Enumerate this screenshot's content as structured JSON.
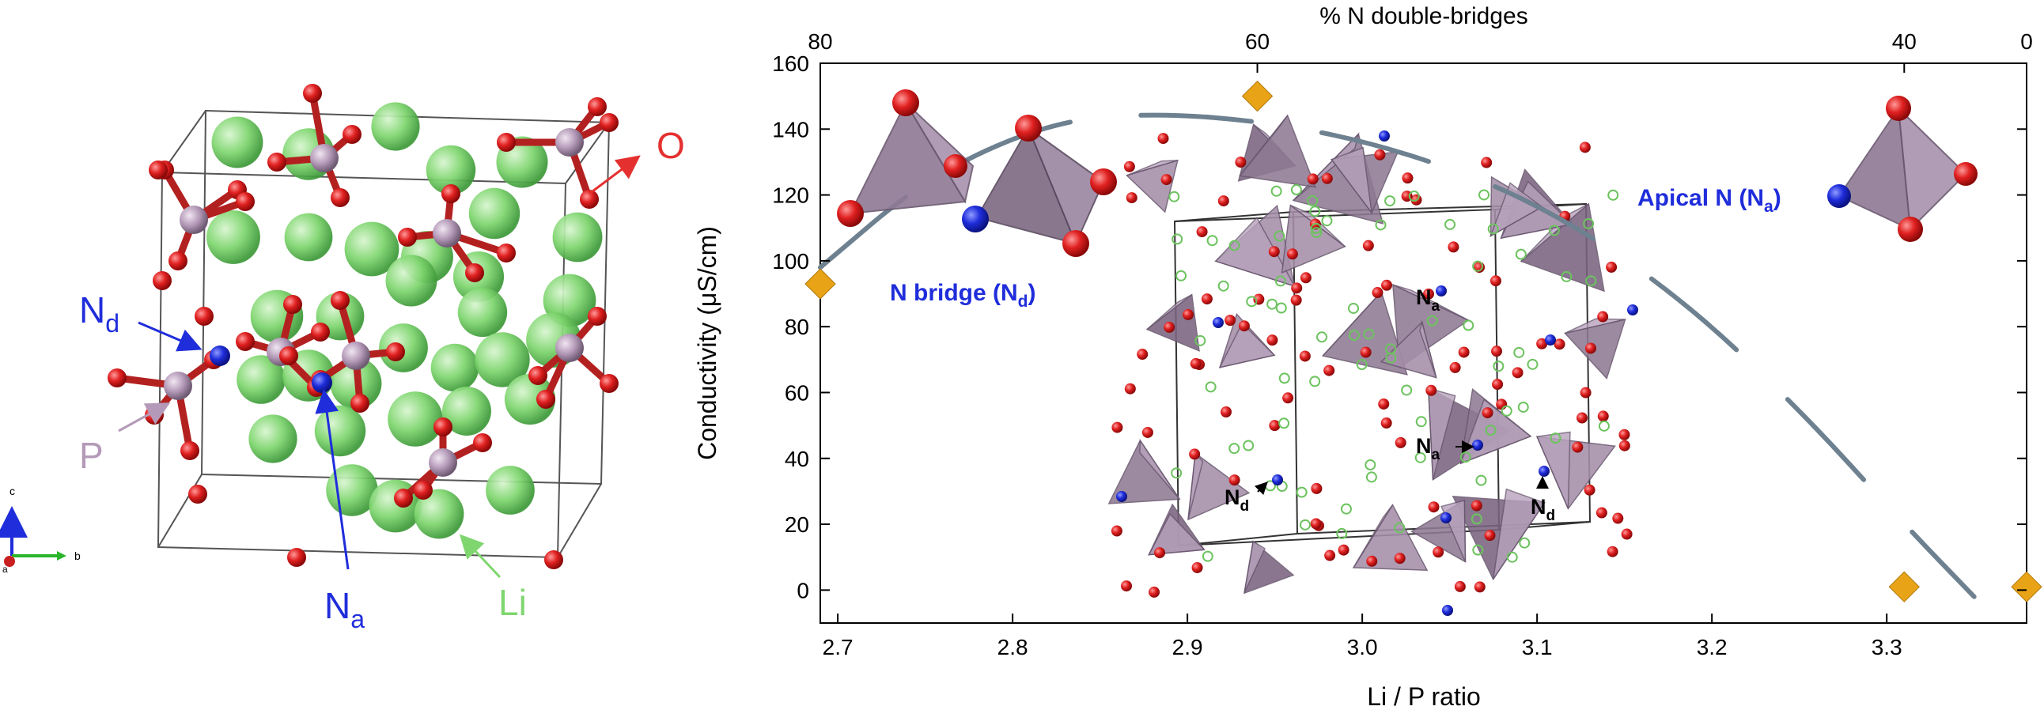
{
  "left_panel": {
    "labels": {
      "nd_main": "N",
      "nd_sub": "d",
      "na_main": "N",
      "na_sub": "a",
      "p": "P",
      "o": "O",
      "li": "Li"
    },
    "axes_triad": {
      "c": "c",
      "b": "b",
      "a": "a"
    },
    "colors": {
      "li": "#7fd66f",
      "o": "#d41e1e",
      "p": "#b49ab8",
      "n": "#1f2ddb",
      "cell": "#555555"
    }
  },
  "chart_data": {
    "type": "scatter",
    "xlabel": "Li / P ratio",
    "ylabel": "Conductivity (μS/cm)",
    "top_axis_label": "% N double-bridges",
    "xlim": [
      2.69,
      3.38
    ],
    "ylim": [
      -10,
      160
    ],
    "x_ticks": [
      2.7,
      2.8,
      2.9,
      3.0,
      3.1,
      3.2,
      3.3
    ],
    "x_tick_labels": [
      "2.7",
      "2.8",
      "2.9",
      "3.0",
      "3.1",
      "3.2",
      "3.3"
    ],
    "y_ticks": [
      0,
      20,
      40,
      60,
      80,
      100,
      120,
      140,
      160
    ],
    "y_tick_labels": [
      "0",
      "20",
      "40",
      "60",
      "80",
      "100",
      "120",
      "140",
      "160"
    ],
    "top_ticks": [
      {
        "li_p": 2.69,
        "label": "80"
      },
      {
        "li_p": 2.94,
        "label": "60"
      },
      {
        "li_p": 3.31,
        "label": "40"
      },
      {
        "li_p": 3.38,
        "label": "0"
      }
    ],
    "series": [
      {
        "marker": "diamond",
        "color": "#e8a317",
        "points": [
          {
            "x": 2.69,
            "y": 93
          },
          {
            "x": 2.94,
            "y": 150
          },
          {
            "x": 3.31,
            "y": 1
          },
          {
            "x": 3.38,
            "y": 1
          }
        ]
      }
    ],
    "trend_curve": {
      "style": "dashed",
      "color": "#6e8190",
      "points": [
        [
          2.69,
          98
        ],
        [
          2.75,
          125
        ],
        [
          2.82,
          142
        ],
        [
          2.88,
          145
        ],
        [
          2.95,
          142
        ],
        [
          3.02,
          134
        ],
        [
          3.1,
          118
        ],
        [
          3.18,
          90
        ],
        [
          3.25,
          55
        ],
        [
          3.31,
          20
        ],
        [
          3.35,
          -2
        ]
      ]
    },
    "annotations": {
      "nd_bridge": "N bridge (N",
      "nd_bridge_sub": "d",
      "nd_bridge_close": ")",
      "apical": "Apical N (N",
      "apical_sub": "a",
      "apical_close": ")",
      "cell_na_1": "N",
      "cell_na_1_sub": "a",
      "cell_na_2": "N",
      "cell_na_2_sub": "a",
      "cell_nd_1": "N",
      "cell_nd_1_sub": "d",
      "cell_nd_2": "N",
      "cell_nd_2_sub": "d"
    }
  }
}
